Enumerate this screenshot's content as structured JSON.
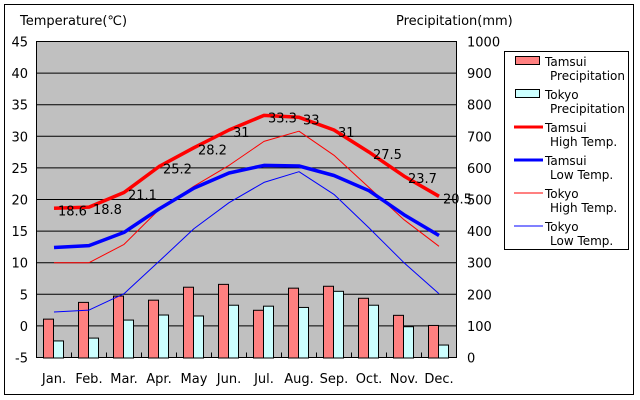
{
  "chart_data": {
    "type": "bar+line",
    "title": "",
    "y_left_label": "Temperature(℃)",
    "y_right_label": "Precipitation(mm)",
    "categories": [
      "Jan.",
      "Feb.",
      "Mar.",
      "Apr.",
      "May",
      "Jun.",
      "Jul.",
      "Aug.",
      "Sep.",
      "Oct.",
      "Nov.",
      "Dec."
    ],
    "y_left_range": [
      -5,
      45
    ],
    "y_left_ticks": [
      "45",
      "40",
      "35",
      "30",
      "25",
      "20",
      "15",
      "10",
      "5",
      "0",
      "-5"
    ],
    "y_right_range": [
      0,
      1000
    ],
    "y_right_ticks": [
      "1000",
      "900",
      "800",
      "700",
      "600",
      "500",
      "400",
      "300",
      "200",
      "100",
      "0"
    ],
    "grid": true,
    "legend_placement": "right",
    "legend": [
      {
        "line1": "Tamsui",
        "line2": "Precipitation",
        "kind": "bar",
        "color": "#ff8080"
      },
      {
        "line1": "Tokyo",
        "line2": "Precipitation",
        "kind": "bar",
        "color": "#ccffff"
      },
      {
        "line1": "Tamsui",
        "line2": "High Temp.",
        "kind": "thick-line",
        "color": "#ff0000"
      },
      {
        "line1": "Tamsui",
        "line2": "Low Temp.",
        "kind": "thick-line",
        "color": "#0000ff"
      },
      {
        "line1": "Tokyo",
        "line2": "High Temp.",
        "kind": "thin-line",
        "color": "#ff0000"
      },
      {
        "line1": "Tokyo",
        "line2": "Low Temp.",
        "kind": "thin-line",
        "color": "#0000ff"
      }
    ],
    "bar_series": [
      {
        "name": "Tamsui Precipitation",
        "axis": "right",
        "color": "#ff8080",
        "values": [
          123,
          176,
          196,
          183,
          224,
          233,
          151,
          221,
          227,
          189,
          135,
          103
        ]
      },
      {
        "name": "Tokyo Precipitation",
        "axis": "right",
        "color": "#ccffff",
        "values": [
          54,
          63,
          120,
          136,
          133,
          167,
          164,
          160,
          211,
          167,
          99,
          41
        ]
      }
    ],
    "line_series": [
      {
        "name": "Tamsui High Temp.",
        "axis": "left",
        "color": "#ff0000",
        "width": "thick",
        "values": [
          18.6,
          18.8,
          21.1,
          25.2,
          28.2,
          31,
          33.3,
          33,
          31,
          27.5,
          23.7,
          20.5
        ],
        "labels": [
          "18.6",
          "18.8",
          "21.1",
          "25.2",
          "28.2",
          "31",
          "33.3",
          "33",
          "31",
          "27.5",
          "23.7",
          "20.5"
        ]
      },
      {
        "name": "Tamsui Low Temp.",
        "axis": "left",
        "color": "#0000ff",
        "width": "thick",
        "values": [
          12.4,
          12.7,
          14.8,
          18.5,
          21.8,
          24.2,
          25.4,
          25.3,
          23.8,
          21.4,
          17.6,
          14.3
        ]
      },
      {
        "name": "Tokyo High Temp.",
        "axis": "left",
        "color": "#ff0000",
        "width": "thin",
        "values": [
          10.0,
          10.0,
          12.9,
          18.4,
          22.1,
          25.4,
          29.2,
          30.8,
          27.0,
          21.9,
          16.8,
          12.6
        ]
      },
      {
        "name": "Tokyo Low Temp.",
        "axis": "left",
        "color": "#0000ff",
        "width": "thin",
        "values": [
          2.2,
          2.5,
          5.1,
          10.2,
          15.4,
          19.5,
          22.7,
          24.4,
          20.8,
          15.5,
          10.0,
          5.1
        ]
      }
    ]
  }
}
